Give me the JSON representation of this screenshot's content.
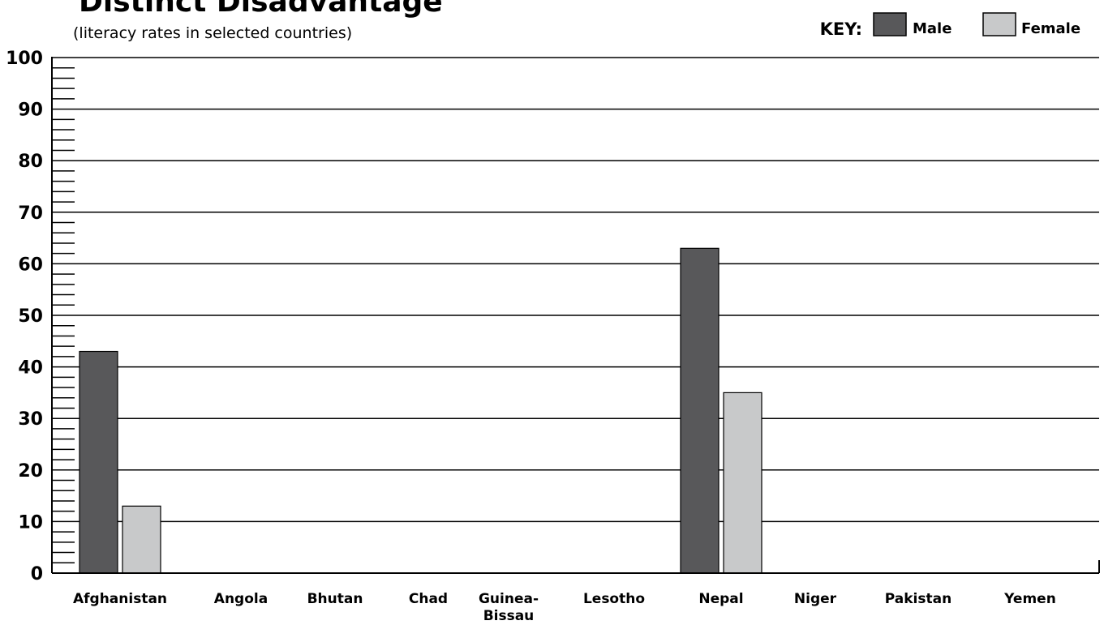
{
  "chart_data": {
    "type": "bar",
    "title": "Distinct Disadvantage",
    "subtitle": "(literacy rates in selected countries)",
    "legend_label": "KEY:",
    "legend_position": "top-right",
    "categories": [
      "Afghanistan",
      "Angola",
      "Bhutan",
      "Chad",
      "Guinea-\nBissau",
      "Lesotho",
      "Nepal",
      "Niger",
      "Pakistan",
      "Yemen"
    ],
    "series": [
      {
        "name": "Male",
        "color": "#58585a",
        "values": [
          43,
          null,
          null,
          null,
          null,
          null,
          63,
          null,
          null,
          null
        ]
      },
      {
        "name": "Female",
        "color": "#c8c9ca",
        "values": [
          13,
          null,
          null,
          null,
          null,
          null,
          35,
          null,
          null,
          null
        ]
      }
    ],
    "y_ticks": [
      "0",
      "10",
      "20",
      "30",
      "40",
      "50",
      "60",
      "70",
      "80",
      "90",
      "100"
    ],
    "ylim": [
      0,
      100
    ],
    "y_major_step": 10,
    "y_minor_step": 2,
    "grid": true,
    "xlabel": "",
    "ylabel": ""
  }
}
